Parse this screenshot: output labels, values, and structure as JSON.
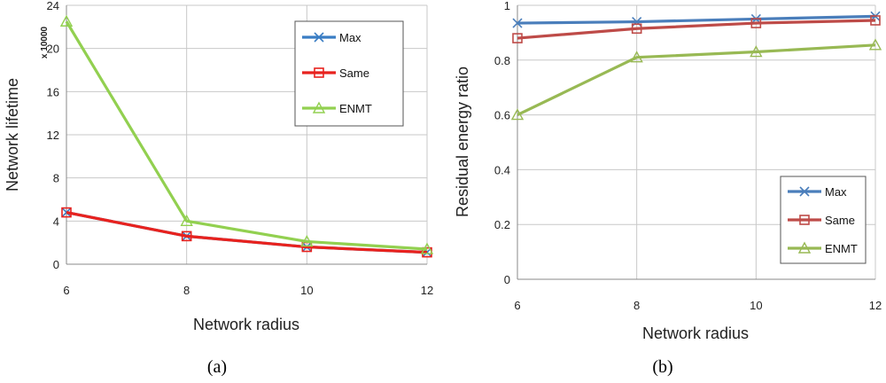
{
  "chart_data": [
    {
      "type": "line",
      "caption": "(a)",
      "xlabel": "Network radius",
      "ylabel": "Network lifetime",
      "y_multiplier": "x 10000",
      "x": [
        6,
        8,
        10,
        12
      ],
      "xlim": [
        6,
        12
      ],
      "ylim": [
        0,
        24
      ],
      "yticks": [
        "0",
        "4",
        "8",
        "12",
        "16",
        "20",
        "24"
      ],
      "xticks": [
        "6",
        "8",
        "10",
        "12"
      ],
      "grid": true,
      "legend_position": "top-right",
      "series": [
        {
          "name": "Max",
          "color": "#3a7dc4",
          "marker": "x",
          "values": [
            4.8,
            2.6,
            1.6,
            1.1
          ]
        },
        {
          "name": "Same",
          "color": "#e8221e",
          "marker": "square",
          "values": [
            4.8,
            2.6,
            1.6,
            1.1
          ]
        },
        {
          "name": "ENMT",
          "color": "#92d050",
          "marker": "triangle",
          "values": [
            22.5,
            4.0,
            2.1,
            1.4
          ]
        }
      ]
    },
    {
      "type": "line",
      "caption": "(b)",
      "xlabel": "Network radius",
      "ylabel": "Residual energy  ratio",
      "x": [
        6,
        8,
        10,
        12
      ],
      "xlim": [
        6,
        12
      ],
      "ylim": [
        0,
        1
      ],
      "yticks": [
        "0",
        "0.2",
        "0.4",
        "0.6",
        "0.8",
        "1"
      ],
      "xticks": [
        "6",
        "8",
        "10",
        "12"
      ],
      "grid": true,
      "legend_position": "bottom-right",
      "series": [
        {
          "name": "Max",
          "color": "#4a7ebb",
          "marker": "x",
          "values": [
            0.935,
            0.94,
            0.95,
            0.96
          ]
        },
        {
          "name": "Same",
          "color": "#be4b48",
          "marker": "square",
          "values": [
            0.88,
            0.915,
            0.935,
            0.945
          ]
        },
        {
          "name": "ENMT",
          "color": "#98b954",
          "marker": "triangle",
          "values": [
            0.6,
            0.81,
            0.83,
            0.855
          ]
        }
      ]
    }
  ]
}
